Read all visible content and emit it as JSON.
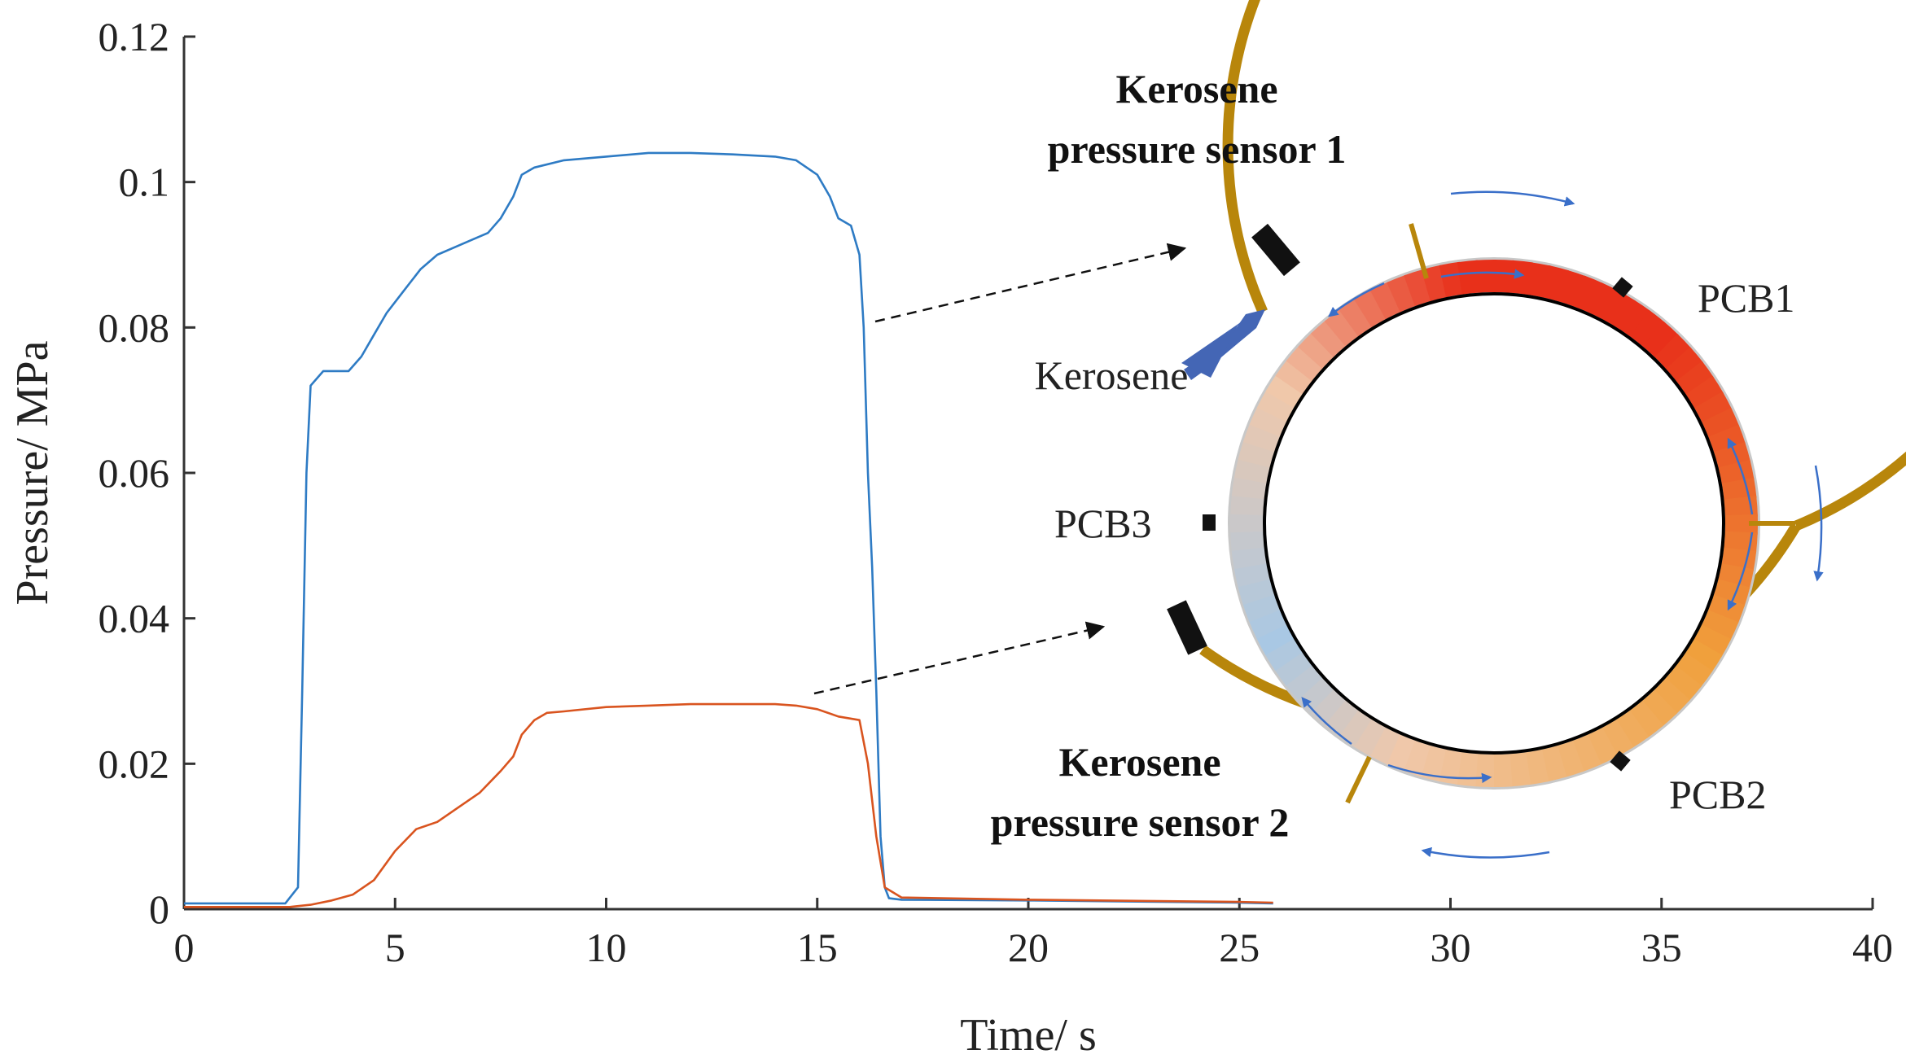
{
  "chart_data": {
    "type": "line",
    "title": "",
    "xlabel": "Time/ s",
    "ylabel": "Pressure/ MPa",
    "xlim": [
      0,
      40
    ],
    "ylim": [
      0,
      0.12
    ],
    "xticks": [
      0,
      5,
      10,
      15,
      20,
      25,
      30,
      35,
      40
    ],
    "xtick_labels": [
      "0",
      "5",
      "10",
      "15",
      "20",
      "25",
      "30",
      "35",
      "40"
    ],
    "yticks": [
      0,
      0.02,
      0.04,
      0.06,
      0.08,
      0.1,
      0.12
    ],
    "ytick_labels": [
      "0",
      "0.02",
      "0.04",
      "0.06",
      "0.08",
      "0.1",
      "0.12"
    ],
    "grid": false,
    "series": [
      {
        "name": "Kerosene pressure sensor 1",
        "color": "#2e7bc4",
        "x": [
          0,
          2.4,
          2.7,
          2.8,
          2.9,
          3.0,
          3.3,
          3.6,
          3.9,
          4.2,
          4.5,
          4.8,
          5.2,
          5.6,
          6.0,
          6.4,
          6.8,
          7.2,
          7.5,
          7.8,
          8.0,
          8.3,
          9.0,
          10.0,
          11.0,
          12.0,
          13.0,
          14.0,
          14.5,
          15.0,
          15.3,
          15.5,
          15.8,
          16.0,
          16.1,
          16.2,
          16.3,
          16.4,
          16.5,
          16.6,
          16.7,
          17,
          20,
          25,
          25.8
        ],
        "y": [
          0.0008,
          0.0008,
          0.003,
          0.03,
          0.06,
          0.072,
          0.074,
          0.074,
          0.074,
          0.076,
          0.079,
          0.082,
          0.085,
          0.088,
          0.09,
          0.091,
          0.092,
          0.093,
          0.095,
          0.098,
          0.101,
          0.102,
          0.103,
          0.1035,
          0.104,
          0.104,
          0.1038,
          0.1035,
          0.103,
          0.101,
          0.098,
          0.095,
          0.094,
          0.09,
          0.08,
          0.06,
          0.047,
          0.03,
          0.01,
          0.003,
          0.0015,
          0.0013,
          0.0012,
          0.0009,
          0.0008
        ]
      },
      {
        "name": "Kerosene pressure sensor 2",
        "color": "#d9541f",
        "x": [
          0,
          2.5,
          3.0,
          3.5,
          4.0,
          4.5,
          5.0,
          5.5,
          6.0,
          6.5,
          7.0,
          7.5,
          7.8,
          8.0,
          8.3,
          8.6,
          9.0,
          10.0,
          11.0,
          12.0,
          13.0,
          14.0,
          14.5,
          15.0,
          15.5,
          16.0,
          16.2,
          16.4,
          16.6,
          17,
          20,
          25,
          25.8
        ],
        "y": [
          0.0003,
          0.0003,
          0.0006,
          0.0012,
          0.002,
          0.004,
          0.008,
          0.011,
          0.012,
          0.014,
          0.016,
          0.019,
          0.021,
          0.024,
          0.026,
          0.027,
          0.0272,
          0.0278,
          0.028,
          0.0282,
          0.0282,
          0.0282,
          0.028,
          0.0275,
          0.0265,
          0.026,
          0.02,
          0.01,
          0.003,
          0.0016,
          0.0013,
          0.001,
          0.0009
        ]
      }
    ],
    "annotations": {
      "sensor1_label_line1": "Kerosene",
      "sensor1_label_line2": "pressure sensor 1",
      "sensor2_label_line1": "Kerosene",
      "sensor2_label_line2": "pressure sensor 2",
      "inlet_label": "Kerosene",
      "pcb1": "PCB1",
      "pcb2": "PCB2",
      "pcb3": "PCB3"
    }
  },
  "colors": {
    "ring_gold": "#b8860b",
    "hot": "#e8301a",
    "cool": "#a9c8e4",
    "arrow_blue": "#4466b5"
  }
}
